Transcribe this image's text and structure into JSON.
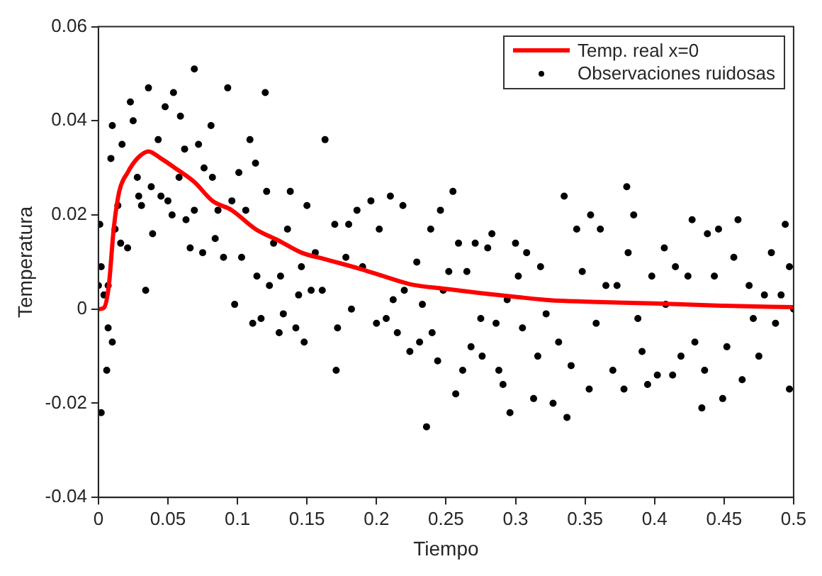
{
  "chart_data": {
    "type": "scatter",
    "xlabel": "Tiempo",
    "ylabel": "Temperatura",
    "xlim": [
      0,
      0.5
    ],
    "xticks": [
      0,
      0.05,
      0.1,
      0.15,
      0.2,
      0.25,
      0.3,
      0.35,
      0.4,
      0.45,
      0.5
    ],
    "ylim": [
      -0.04,
      0.06
    ],
    "yticks": [
      -0.04,
      -0.02,
      0,
      0.02,
      0.04,
      0.06
    ],
    "grid": false,
    "legend": "top right",
    "series": [
      {
        "name": "Temp. real x=0",
        "type": "line",
        "color": "#ff0000",
        "marker": "none",
        "line_style": "solid",
        "x": [
          0,
          0.004,
          0.0075,
          0.011,
          0.015,
          0.021,
          0.028,
          0.036,
          0.045,
          0.055,
          0.069,
          0.082,
          0.096,
          0.113,
          0.13,
          0.146,
          0.163,
          0.19,
          0.207,
          0.224,
          0.25,
          0.275,
          0.3,
          0.325,
          0.35,
          0.4,
          0.45,
          0.5
        ],
        "values": [
          0,
          0.0003,
          0.005,
          0.017,
          0.025,
          0.029,
          0.032,
          0.0335,
          0.032,
          0.03,
          0.027,
          0.023,
          0.021,
          0.017,
          0.0145,
          0.012,
          0.0106,
          0.0084,
          0.0068,
          0.0053,
          0.0043,
          0.0034,
          0.0026,
          0.0019,
          0.0016,
          0.0012,
          0.0007,
          0.0004
        ]
      },
      {
        "name": "Observaciones ruidosas",
        "type": "scatter",
        "color": "#000000",
        "marker": "circle",
        "x": [
          0.001,
          0.002,
          0,
          0.004,
          0.007,
          0.01,
          0.006,
          0.002,
          0.007,
          0.009,
          0.01,
          0.012,
          0.014,
          0.016,
          0.017,
          0.021,
          0.023,
          0.025,
          0.028,
          0.029,
          0.031,
          0.034,
          0.036,
          0.038,
          0.039,
          0.043,
          0.045,
          0.048,
          0.05,
          0.053,
          0.054,
          0.058,
          0.059,
          0.062,
          0.063,
          0.066,
          0.069,
          0.069,
          0.072,
          0.075,
          0.076,
          0.081,
          0.082,
          0.084,
          0.086,
          0.09,
          0.093,
          0.096,
          0.098,
          0.101,
          0.103,
          0.106,
          0.109,
          0.111,
          0.113,
          0.114,
          0.117,
          0.12,
          0.121,
          0.123,
          0.126,
          0.13,
          0.131,
          0.133,
          0.136,
          0.138,
          0.142,
          0.144,
          0.146,
          0.148,
          0.15,
          0.153,
          0.156,
          0.161,
          0.163,
          0.17,
          0.172,
          0.171,
          0.178,
          0.18,
          0.182,
          0.186,
          0.19,
          0.196,
          0.2,
          0.202,
          0.207,
          0.21,
          0.212,
          0.215,
          0.219,
          0.22,
          0.224,
          0.229,
          0.231,
          0.233,
          0.236,
          0.239,
          0.24,
          0.244,
          0.246,
          0.248,
          0.252,
          0.255,
          0.257,
          0.259,
          0.262,
          0.265,
          0.268,
          0.271,
          0.275,
          0.276,
          0.28,
          0.283,
          0.286,
          0.288,
          0.291,
          0.294,
          0.296,
          0.3,
          0.302,
          0.305,
          0.308,
          0.313,
          0.316,
          0.318,
          0.322,
          0.327,
          0.331,
          0.335,
          0.337,
          0.34,
          0.344,
          0.348,
          0.353,
          0.354,
          0.358,
          0.361,
          0.365,
          0.37,
          0.373,
          0.378,
          0.38,
          0.381,
          0.385,
          0.388,
          0.391,
          0.395,
          0.398,
          0.402,
          0.407,
          0.408,
          0.413,
          0.415,
          0.419,
          0.424,
          0.427,
          0.429,
          0.434,
          0.436,
          0.438,
          0.443,
          0.446,
          0.449,
          0.452,
          0.457,
          0.46,
          0.463,
          0.468,
          0.471,
          0.475,
          0.479,
          0.484,
          0.487,
          0.491,
          0.494,
          0.497,
          0.497,
          0.5
        ],
        "values": [
          0.018,
          0.009,
          0.005,
          0.003,
          -0.004,
          -0.007,
          -0.013,
          -0.022,
          0.005,
          0.032,
          0.039,
          0.017,
          0.022,
          0.014,
          0.035,
          0.013,
          0.044,
          0.04,
          0.028,
          0.024,
          0.022,
          0.004,
          0.047,
          0.026,
          0.016,
          0.036,
          0.024,
          0.043,
          0.023,
          0.02,
          0.046,
          0.028,
          0.041,
          0.034,
          0.019,
          0.013,
          0.051,
          0.021,
          0.035,
          0.012,
          0.03,
          0.039,
          0.028,
          0.015,
          0.021,
          0.011,
          0.047,
          0.023,
          0.001,
          0.029,
          0.011,
          0.021,
          0.036,
          -0.003,
          0.031,
          0.007,
          -0.002,
          0.046,
          0.025,
          0.005,
          0.014,
          -0.005,
          0.007,
          -0.001,
          0.017,
          0.025,
          -0.004,
          0.003,
          0.009,
          -0.007,
          0.022,
          0.004,
          0.012,
          0.004,
          0.036,
          0.018,
          -0.004,
          -0.013,
          0.011,
          0.018,
          0,
          0.021,
          0.009,
          0.023,
          -0.003,
          0.017,
          -0.002,
          0.024,
          0.002,
          -0.005,
          0.022,
          0.004,
          -0.009,
          0.01,
          -0.007,
          0.001,
          -0.025,
          0.017,
          -0.005,
          -0.011,
          0.021,
          0.004,
          0.008,
          0.025,
          -0.018,
          0.014,
          -0.013,
          0.008,
          -0.008,
          0.014,
          -0.002,
          -0.01,
          0.013,
          0.016,
          -0.003,
          -0.013,
          -0.016,
          0.002,
          -0.022,
          0.014,
          0.007,
          -0.004,
          0.012,
          -0.019,
          -0.01,
          0.009,
          -0.001,
          -0.02,
          -0.007,
          0.024,
          -0.023,
          -0.012,
          0.017,
          0.008,
          -0.017,
          0.02,
          -0.003,
          0.017,
          0.005,
          -0.013,
          0.005,
          -0.017,
          0.026,
          0.012,
          0.02,
          -0.002,
          -0.009,
          -0.016,
          0.007,
          -0.014,
          0.013,
          0.001,
          -0.014,
          0.009,
          -0.01,
          0.007,
          0.019,
          -0.007,
          -0.021,
          -0.013,
          0.016,
          0.007,
          0.017,
          -0.019,
          -0.008,
          0.011,
          0.019,
          -0.015,
          0.005,
          -0.002,
          -0.01,
          0.003,
          0.012,
          -0.003,
          0.003,
          0.018,
          0.009,
          -0.017,
          0
        ]
      }
    ]
  }
}
